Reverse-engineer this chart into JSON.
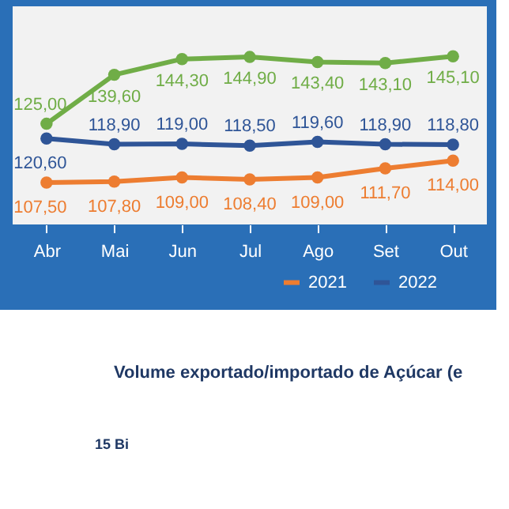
{
  "chart_data": [
    {
      "type": "line",
      "categories": [
        "Abr",
        "Mai",
        "Jun",
        "Jul",
        "Ago",
        "Set",
        "Out"
      ],
      "marker": "circle",
      "legend": "bottom right",
      "tick_labels": "x",
      "series": [
        {
          "name": "2021",
          "color": "#ed7d31",
          "values": [
            107.5,
            107.8,
            109.0,
            108.4,
            109.0,
            111.7,
            114.0
          ],
          "value_labels": [
            "107,50",
            "107,80",
            "109,00",
            "108,40",
            "109,00",
            "111,70",
            "114,00"
          ]
        },
        {
          "name": "2022",
          "color": "#2f5597",
          "values": [
            120.6,
            118.9,
            119.0,
            118.5,
            119.6,
            118.9,
            118.8
          ],
          "value_labels": [
            "120,60",
            "118,90",
            "119,00",
            "118,50",
            "119,60",
            "118,90",
            "118,80"
          ]
        },
        {
          "color": "#70ad47",
          "values": [
            125.0,
            139.6,
            144.3,
            144.9,
            143.4,
            143.1,
            145.1
          ],
          "value_labels": [
            "125,00",
            "139,60",
            "144,30",
            "144,90",
            "143,40",
            "143,10",
            "145,10"
          ]
        }
      ]
    },
    {
      "type": "other",
      "title": "Volume exportado/importado de Açúcar (e",
      "annotations": [
        "15 Bi"
      ]
    }
  ]
}
